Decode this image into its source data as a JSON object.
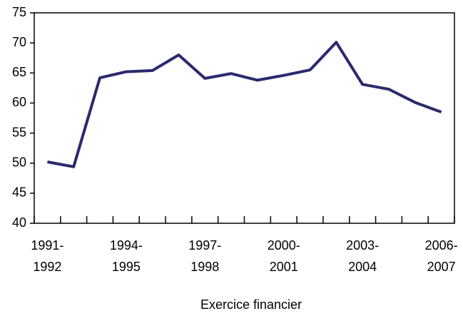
{
  "chart_data": {
    "type": "line",
    "x_label": "Exercice financier",
    "categories": [
      [
        "1991-",
        "1992"
      ],
      null,
      null,
      [
        "1994-",
        "1995"
      ],
      null,
      null,
      [
        "1997-",
        "1998"
      ],
      null,
      null,
      [
        "2000-",
        "2001"
      ],
      null,
      null,
      [
        "2003-",
        "2004"
      ],
      null,
      null,
      [
        "2006-",
        "2007"
      ]
    ],
    "series": [
      {
        "color": "#2b2a6e",
        "values": [
          50.2,
          49.4,
          64.2,
          65.2,
          65.4,
          68.0,
          64.1,
          64.9,
          63.8,
          64.6,
          65.5,
          70.1,
          63.1,
          62.3,
          60.1,
          58.5
        ]
      }
    ],
    "ylim": [
      40,
      75
    ],
    "yticks": [
      40,
      45,
      50,
      55,
      60,
      65,
      70,
      75
    ]
  }
}
